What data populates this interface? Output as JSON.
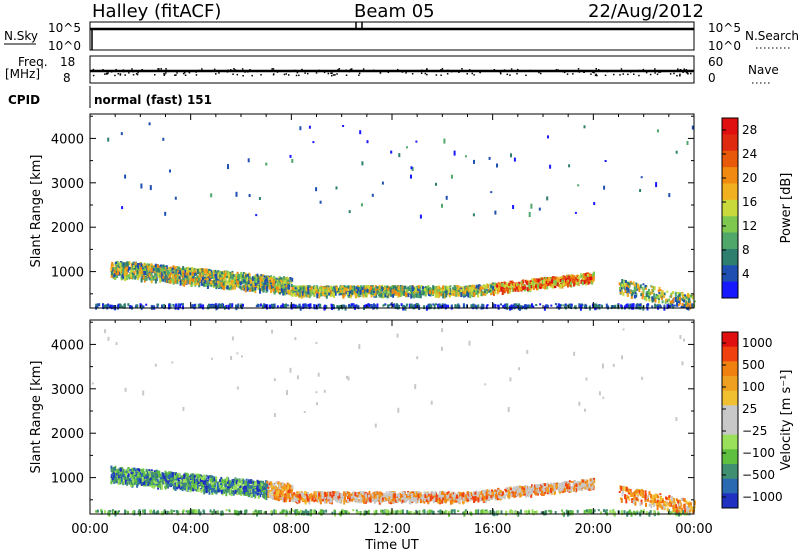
{
  "header": {
    "station": "Halley (fitACF)",
    "beam": "Beam 05",
    "date": "22/Aug/2012"
  },
  "strip_labels": {
    "nsky": "N.Sky",
    "nsky_hi": "10^5",
    "nsky_lo": "10^0",
    "nsearch": "N.Search",
    "nsearch_hi": "10^5",
    "nsearch_lo": "10^0",
    "freq": "Freq.",
    "freq_unit": "[MHz]",
    "freq_hi": "18",
    "freq_lo": "8",
    "nave": "Nave",
    "nave_hi": "60",
    "nave_lo": "0",
    "cpid": "CPID",
    "mode": "normal (fast) 151"
  },
  "chart_data": [
    {
      "type": "heatmap",
      "panel": "power",
      "ylabel": "Slant Range [km]",
      "xlabel": "Time UT",
      "x_ticks": [
        "00:00",
        "04:00",
        "08:00",
        "12:00",
        "16:00",
        "20:00",
        "00:00"
      ],
      "x_range_hours": [
        0,
        24
      ],
      "y_ticks": [
        1000,
        2000,
        3000,
        4000
      ],
      "y_range_km": [
        180,
        4550
      ],
      "colorbar": {
        "label": "Power [dB]",
        "ticks": [
          "4",
          "8",
          "12",
          "16",
          "20",
          "24",
          "28"
        ],
        "colors": [
          "#1818ff",
          "#1f4fb0",
          "#2f7f6f",
          "#4fa86a",
          "#7fc84f",
          "#c9d83a",
          "#f0b020",
          "#f08a10",
          "#e85a0a",
          "#e02a10",
          "#e01010"
        ]
      }
    },
    {
      "type": "heatmap",
      "panel": "velocity",
      "ylabel": "Slant Range [km]",
      "xlabel": "Time UT",
      "x_ticks": [
        "00:00",
        "04:00",
        "08:00",
        "12:00",
        "16:00",
        "20:00",
        "00:00"
      ],
      "x_range_hours": [
        0,
        24
      ],
      "y_ticks": [
        1000,
        2000,
        3000,
        4000
      ],
      "y_range_km": [
        180,
        4550
      ],
      "colorbar": {
        "label": "Velocity [m s⁻¹]",
        "ticks": [
          "1000",
          "500",
          "100",
          "25",
          "−25",
          "−100",
          "−500",
          "−1000"
        ],
        "colors": [
          "#2030c0",
          "#2a6ab0",
          "#3f8f70",
          "#5fbf3f",
          "#9be05a",
          "#c8c8c8",
          "#c8c8c8",
          "#f0c030",
          "#f0a020",
          "#f08010",
          "#f04010",
          "#e01010"
        ]
      }
    }
  ]
}
